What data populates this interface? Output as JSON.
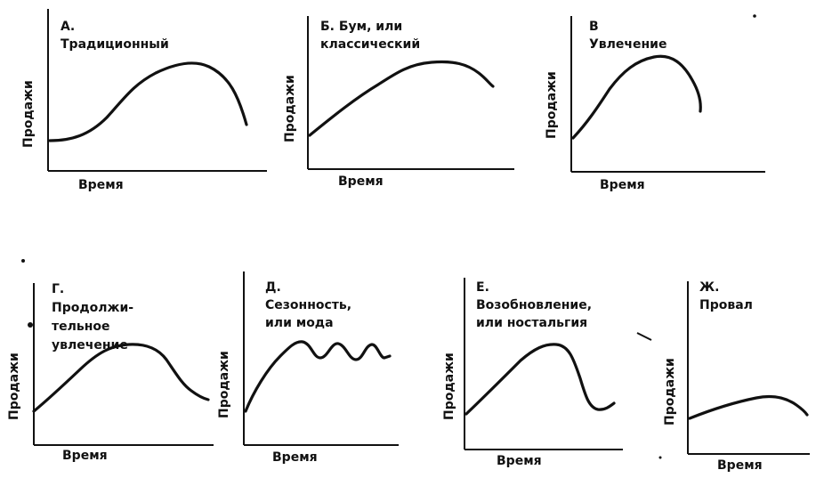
{
  "axes": {
    "y_label": "Продажи",
    "x_label": "Время"
  },
  "panels": [
    {
      "id": "a",
      "title": "А. Традиционный"
    },
    {
      "id": "b",
      "title": "Б. Бум, или\nклассический"
    },
    {
      "id": "v",
      "title": "В  Увлечение"
    },
    {
      "id": "g",
      "title": "Г. Продолжи-\nтельное\nувлечение"
    },
    {
      "id": "d",
      "title": "Д. Сезонность,\nили мода"
    },
    {
      "id": "e",
      "title": "Е. Возобновление,\nили ностальгия"
    },
    {
      "id": "zh",
      "title": "Ж. Провал"
    }
  ]
}
